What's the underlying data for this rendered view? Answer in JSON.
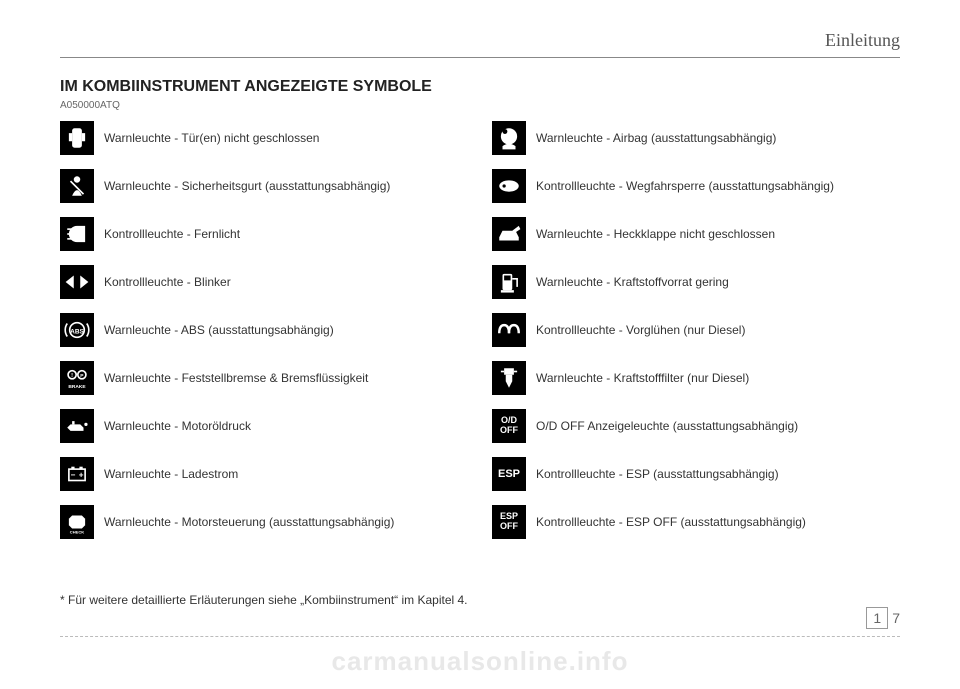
{
  "header": {
    "section": "Einleitung"
  },
  "title": "IM KOMBIINSTRUMENT ANGEZEIGTE SYMBOLE",
  "refcode": "A050000ATQ",
  "left": [
    {
      "icon": "door",
      "label": "Warnleuchte - Tür(en) nicht geschlossen"
    },
    {
      "icon": "seatbelt",
      "label": "Warnleuchte - Sicherheitsgurt (ausstattungsabhängig)"
    },
    {
      "icon": "highbeam",
      "label": "Kontrollleuchte - Fernlicht"
    },
    {
      "icon": "blinker",
      "label": "Kontrollleuchte - Blinker"
    },
    {
      "icon": "abs",
      "label": "Warnleuchte - ABS (ausstattungsabhängig)"
    },
    {
      "icon": "brake",
      "label": "Warnleuchte - Feststellbremse & Bremsflüssigkeit"
    },
    {
      "icon": "oil",
      "label": "Warnleuchte - Motoröldruck"
    },
    {
      "icon": "battery",
      "label": "Warnleuchte - Ladestrom"
    },
    {
      "icon": "checkengine",
      "label": "Warnleuchte - Motorsteuerung (ausstattungsabhängig)"
    }
  ],
  "right": [
    {
      "icon": "airbag",
      "label": "Warnleuchte - Airbag (ausstattungsabhängig)"
    },
    {
      "icon": "immobilizer",
      "label": "Kontrollleuchte - Wegfahrsperre (ausstattungsabhängig)"
    },
    {
      "icon": "tailgate",
      "label": "Warnleuchte - Heckklappe nicht geschlossen"
    },
    {
      "icon": "fuel",
      "label": "Warnleuchte - Kraftstoffvorrat gering"
    },
    {
      "icon": "glow",
      "label": "Kontrollleuchte - Vorglühen (nur Diesel)"
    },
    {
      "icon": "fuelfilter",
      "label": "Warnleuchte - Kraftstofffilter (nur Diesel)"
    },
    {
      "icon": "odoff",
      "label": "O/D OFF Anzeigeleuchte (ausstattungsabhängig)"
    },
    {
      "icon": "esp",
      "label": "Kontrollleuchte - ESP (ausstattungsabhängig)"
    },
    {
      "icon": "espoff",
      "label": "Kontrollleuchte - ESP OFF (ausstattungsabhängig)"
    }
  ],
  "footnote": "* Für weitere detaillierte Erläuterungen siehe „Kombiinstrument“ im Kapitel 4.",
  "pagenum": {
    "chapter": "1",
    "page": "7"
  },
  "watermark": "carmanualsonline.info",
  "colors": {
    "icon_bg": "#000000",
    "icon_fg": "#ffffff",
    "text": "#333333",
    "rule": "#888888",
    "dashed": "#bbbbbb",
    "watermark": "#e8e8e8"
  }
}
